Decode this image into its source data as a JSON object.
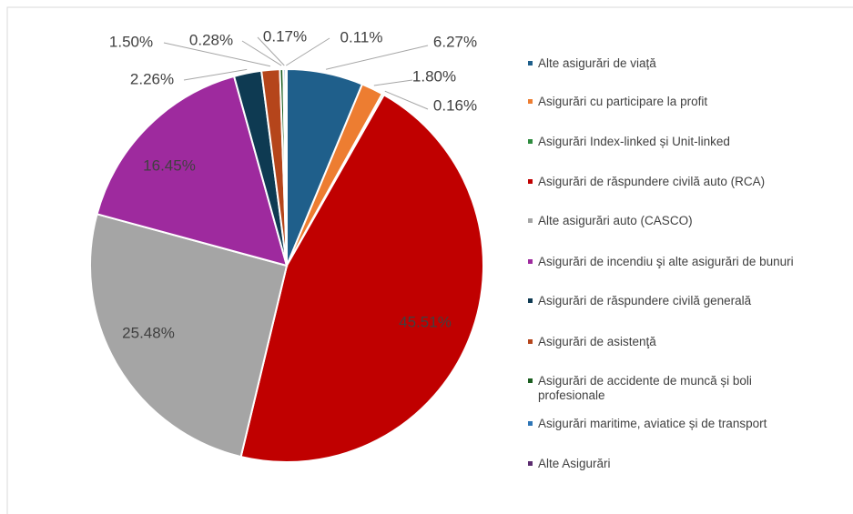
{
  "chart_data": {
    "type": "pie",
    "categories": [
      "Alte asigurări de viață",
      "Asigurări cu participare la profit",
      "Asigurări Index-linked și Unit-linked",
      "Asigurări de răspundere civilă auto (RCA)",
      "Alte asigurări auto (CASCO)",
      "Asigurări de incendiu şi alte asigurări de bunuri",
      "Asigurări de răspundere civilă generală",
      "Asigurări de asistenţă",
      "Asigurări de accidente de muncă și boli profesionale",
      "Asigurări maritime, aviatice și de transport",
      "Alte Asigurări"
    ],
    "values": [
      6.27,
      1.8,
      0.16,
      45.51,
      25.48,
      16.45,
      2.26,
      1.5,
      0.28,
      0.17,
      0.11
    ],
    "value_labels": [
      "6.27%",
      "1.80%",
      "0.16%",
      "45.51%",
      "25.48%",
      "16.45%",
      "2.26%",
      "1.50%",
      "0.28%",
      "0.17%",
      "0.11%"
    ],
    "colors": [
      "#1f5f8b",
      "#ed7d31",
      "#2e8b3e",
      "#c00000",
      "#a5a5a5",
      "#9e2a9e",
      "#0e3a52",
      "#b5451b",
      "#1b5e20",
      "#2e75b6",
      "#5b2c6f"
    ],
    "legend": "right"
  }
}
